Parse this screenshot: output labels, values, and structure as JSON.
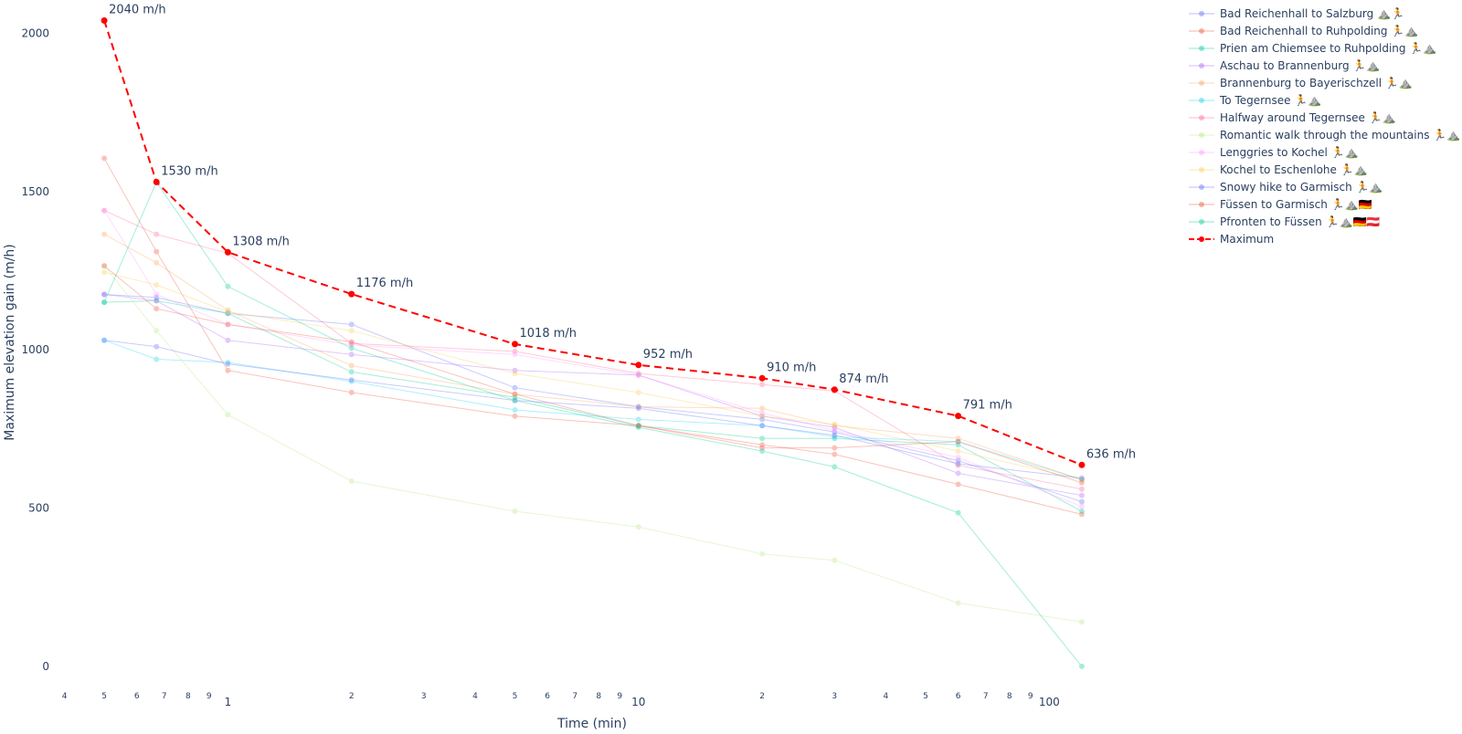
{
  "chart_data": {
    "type": "line",
    "title": "",
    "xlabel": "Time (min)",
    "ylabel": "Maximum elevation gain (m/h)",
    "x_scale": "log",
    "xlim": [
      0.3509,
      168.4
    ],
    "ylim": [
      -110,
      2105
    ],
    "grid": false,
    "legend_position": "top-right",
    "x_ticks": [
      {
        "value": 0.4,
        "label": "4",
        "size": "small"
      },
      {
        "value": 0.5,
        "label": "5",
        "size": "small"
      },
      {
        "value": 0.6,
        "label": "6",
        "size": "small"
      },
      {
        "value": 0.7,
        "label": "7",
        "size": "small"
      },
      {
        "value": 0.8,
        "label": "8",
        "size": "small"
      },
      {
        "value": 0.9,
        "label": "9",
        "size": "small"
      },
      {
        "value": 1,
        "label": "1",
        "size": "major"
      },
      {
        "value": 2,
        "label": "2",
        "size": "small"
      },
      {
        "value": 3,
        "label": "3",
        "size": "small"
      },
      {
        "value": 4,
        "label": "4",
        "size": "small"
      },
      {
        "value": 5,
        "label": "5",
        "size": "small"
      },
      {
        "value": 6,
        "label": "6",
        "size": "small"
      },
      {
        "value": 7,
        "label": "7",
        "size": "small"
      },
      {
        "value": 8,
        "label": "8",
        "size": "small"
      },
      {
        "value": 9,
        "label": "9",
        "size": "small"
      },
      {
        "value": 10,
        "label": "10",
        "size": "major"
      },
      {
        "value": 20,
        "label": "2",
        "size": "small"
      },
      {
        "value": 30,
        "label": "3",
        "size": "small"
      },
      {
        "value": 40,
        "label": "4",
        "size": "small"
      },
      {
        "value": 50,
        "label": "5",
        "size": "small"
      },
      {
        "value": 60,
        "label": "6",
        "size": "small"
      },
      {
        "value": 70,
        "label": "7",
        "size": "small"
      },
      {
        "value": 80,
        "label": "8",
        "size": "small"
      },
      {
        "value": 90,
        "label": "9",
        "size": "small"
      },
      {
        "value": 100,
        "label": "100",
        "size": "major"
      }
    ],
    "y_ticks": [
      {
        "value": 0,
        "label": "0"
      },
      {
        "value": 500,
        "label": "500"
      },
      {
        "value": 1000,
        "label": "1000"
      },
      {
        "value": 1500,
        "label": "1500"
      },
      {
        "value": 2000,
        "label": "2000"
      }
    ],
    "x": [
      0.5,
      0.67,
      1,
      2,
      5,
      10,
      20,
      30,
      60,
      120
    ],
    "series": [
      {
        "name": "Bad Reichenhall to Salzburg ⛰️🏃",
        "color": "#636efa",
        "values": [
          1175,
          1165,
          1115,
          1080,
          880,
          820,
          780,
          740,
          650,
          520
        ]
      },
      {
        "name": "Bad Reichenhall to Ruhpolding 🏃⛰️",
        "color": "#ef553b",
        "values": [
          1605,
          1310,
          935,
          865,
          790,
          760,
          700,
          670,
          575,
          480
        ]
      },
      {
        "name": "Prien am Chiemsee to Ruhpolding 🏃⛰️",
        "color": "#00cc96",
        "values": [
          1150,
          1155,
          1115,
          930,
          850,
          760,
          720,
          720,
          700,
          490
        ]
      },
      {
        "name": "Aschau to Brannenburg 🏃⛰️",
        "color": "#ab63fa",
        "values": [
          1175,
          1155,
          1030,
          985,
          935,
          920,
          790,
          755,
          610,
          540
        ]
      },
      {
        "name": "Brannenburg to Bayerischzell 🏃⛰️",
        "color": "#ffa15a",
        "values": [
          1365,
          1275,
          1125,
          950,
          860,
          820,
          815,
          760,
          720,
          590
        ]
      },
      {
        "name": "To Tegernsee 🏃⛰️",
        "color": "#19d3f3",
        "values": [
          1030,
          970,
          960,
          900,
          810,
          780,
          760,
          725,
          710,
          590
        ]
      },
      {
        "name": "Halfway around Tegernsee 🏃⛰️",
        "color": "#ff6692",
        "values": [
          1440,
          1365,
          1305,
          1020,
          995,
          925,
          890,
          870,
          635,
          560
        ]
      },
      {
        "name": "Romantic walk through the mountains 🏃⛰️",
        "color": "#b6e880",
        "values": [
          1265,
          1060,
          795,
          585,
          490,
          440,
          355,
          335,
          200,
          140
        ]
      },
      {
        "name": "Lenggries to Kochel 🏃⛰️",
        "color": "#ff97ff",
        "values": [
          1440,
          1175,
          1080,
          1015,
          985,
          920,
          800,
          745,
          660,
          505
        ]
      },
      {
        "name": "Kochel to Eschenlohe 🏃⛰️",
        "color": "#fecb52",
        "values": [
          1245,
          1205,
          1120,
          1060,
          925,
          865,
          790,
          765,
          680,
          590
        ]
      },
      {
        "name": "Snowy hike to Garmisch 🏃⛰️",
        "color": "#636efa",
        "values": [
          1030,
          1010,
          955,
          905,
          840,
          815,
          760,
          730,
          640,
          595
        ]
      },
      {
        "name": "Füssen to Garmisch 🏃⛰️🇩🇪",
        "color": "#ef553b",
        "values": [
          1265,
          1130,
          1080,
          1025,
          860,
          760,
          690,
          690,
          710,
          580
        ]
      },
      {
        "name": "Pfronten to Füssen 🏃⛰️🇩🇪🇦🇹",
        "color": "#00cc96",
        "values": [
          1150,
          1530,
          1200,
          1005,
          840,
          755,
          680,
          630,
          485,
          0
        ]
      }
    ],
    "maximum": {
      "name": "Maximum",
      "color": "#ff0000",
      "values": [
        2040,
        1530,
        1308,
        1176,
        1018,
        952,
        910,
        874,
        791,
        636
      ],
      "labels": [
        "2040 m/h",
        "1530 m/h",
        "1308 m/h",
        "1176 m/h",
        "1018 m/h",
        "952 m/h",
        "910 m/h",
        "874 m/h",
        "791 m/h",
        "636 m/h"
      ]
    }
  }
}
